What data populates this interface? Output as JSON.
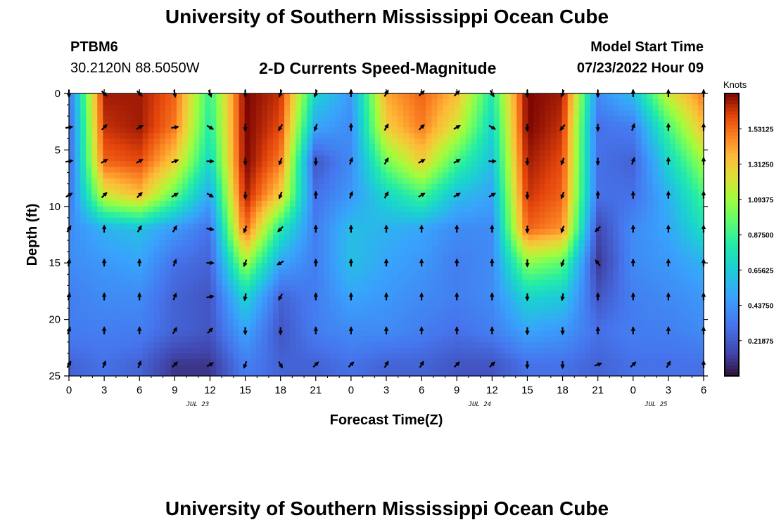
{
  "header": {
    "title": "University of Southern Mississippi Ocean Cube",
    "station": "PTBM6",
    "coords": "30.2120N  88.5050W",
    "subtitle": "2-D Currents Speed-Magnitude",
    "model_label": "Model Start Time",
    "model_time": "07/23/2022 Hour 09"
  },
  "footer": {
    "title": "University of Southern Mississippi Ocean Cube"
  },
  "chart_data": {
    "type": "heatmap",
    "xlabel": "Forecast Time(Z)",
    "ylabel": "Depth (ft)",
    "x_ticks": [
      "0",
      "3",
      "6",
      "9",
      "12",
      "15",
      "18",
      "21",
      "0",
      "3",
      "6",
      "9",
      "12",
      "15",
      "18",
      "21",
      "0",
      "3",
      "6"
    ],
    "date_labels": [
      {
        "label": "JUL 23",
        "at_tick": 3.65
      },
      {
        "label": "JUL 24",
        "at_tick": 11.65
      },
      {
        "label": "JUL 25",
        "at_tick": 16.65
      }
    ],
    "y_ticks": [
      "0",
      "5",
      "10",
      "15",
      "20",
      "25"
    ],
    "ylim": [
      0,
      25
    ],
    "colorbar": {
      "title": "Knots",
      "tick_labels": [
        "1.53125",
        "1.31250",
        "1.09375",
        "0.87500",
        "0.65625",
        "0.43750",
        "0.21875"
      ],
      "tick_values": [
        1.53125,
        1.3125,
        1.09375,
        0.875,
        0.65625,
        0.4375,
        0.21875
      ],
      "range": [
        0,
        1.75
      ]
    },
    "x_hours": [
      0,
      3,
      6,
      9,
      12,
      15,
      18,
      21,
      24,
      27,
      30,
      33,
      36,
      39,
      42,
      45,
      48,
      51,
      54
    ],
    "depths": [
      0,
      3,
      6,
      9,
      12,
      15,
      18,
      21,
      24
    ],
    "speed": [
      [
        0.3,
        1.7,
        1.7,
        1.55,
        0.85,
        1.75,
        1.65,
        0.7,
        0.45,
        1.4,
        1.55,
        1.35,
        0.8,
        1.75,
        1.7,
        0.4,
        0.6,
        1.2,
        1.5
      ],
      [
        0.25,
        1.65,
        1.7,
        1.5,
        0.8,
        1.75,
        1.6,
        0.5,
        0.4,
        1.3,
        1.5,
        1.2,
        0.7,
        1.75,
        1.65,
        0.3,
        0.35,
        0.9,
        1.35
      ],
      [
        0.25,
        1.55,
        1.6,
        1.3,
        0.7,
        1.75,
        1.5,
        0.2,
        0.4,
        1.0,
        1.3,
        0.9,
        0.6,
        1.7,
        1.6,
        0.3,
        0.25,
        0.7,
        1.1
      ],
      [
        0.3,
        1.2,
        1.35,
        0.95,
        0.5,
        1.7,
        1.3,
        0.3,
        0.45,
        0.7,
        0.9,
        0.6,
        0.5,
        1.65,
        1.55,
        0.3,
        0.3,
        0.55,
        0.9
      ],
      [
        0.4,
        0.55,
        0.6,
        0.45,
        0.3,
        1.55,
        0.8,
        0.35,
        0.6,
        0.55,
        0.5,
        0.4,
        0.4,
        1.55,
        1.45,
        0.15,
        0.4,
        0.5,
        0.75
      ],
      [
        0.4,
        0.45,
        0.5,
        0.3,
        0.25,
        1.1,
        0.5,
        0.35,
        0.6,
        0.5,
        0.45,
        0.35,
        0.4,
        1.05,
        0.95,
        0.1,
        0.4,
        0.45,
        0.55
      ],
      [
        0.35,
        0.4,
        0.4,
        0.25,
        0.2,
        0.7,
        0.25,
        0.35,
        0.5,
        0.45,
        0.4,
        0.35,
        0.4,
        0.7,
        0.65,
        0.2,
        0.35,
        0.4,
        0.45
      ],
      [
        0.35,
        0.35,
        0.35,
        0.25,
        0.2,
        0.5,
        0.2,
        0.35,
        0.4,
        0.4,
        0.35,
        0.3,
        0.35,
        0.5,
        0.45,
        0.3,
        0.35,
        0.35,
        0.4
      ],
      [
        0.25,
        0.3,
        0.25,
        0.1,
        0.1,
        0.35,
        0.25,
        0.25,
        0.3,
        0.25,
        0.25,
        0.2,
        0.2,
        0.3,
        0.3,
        0.25,
        0.3,
        0.3,
        0.3
      ]
    ],
    "direction_deg": [
      [
        180,
        135,
        135,
        170,
        160,
        180,
        200,
        200,
        0,
        30,
        45,
        45,
        150,
        180,
        200,
        180,
        0,
        0,
        0
      ],
      [
        80,
        45,
        60,
        80,
        120,
        180,
        210,
        200,
        0,
        30,
        45,
        60,
        120,
        180,
        220,
        180,
        20,
        0,
        0
      ],
      [
        80,
        60,
        60,
        70,
        90,
        180,
        200,
        180,
        20,
        30,
        60,
        60,
        90,
        180,
        200,
        180,
        20,
        0,
        0
      ],
      [
        60,
        45,
        45,
        60,
        120,
        180,
        200,
        0,
        20,
        30,
        60,
        60,
        60,
        180,
        200,
        0,
        0,
        0,
        0
      ],
      [
        30,
        0,
        30,
        30,
        100,
        200,
        225,
        0,
        0,
        0,
        0,
        0,
        0,
        180,
        200,
        225,
        0,
        0,
        0
      ],
      [
        10,
        0,
        0,
        20,
        90,
        200,
        240,
        0,
        0,
        0,
        0,
        0,
        0,
        180,
        200,
        320,
        0,
        0,
        0
      ],
      [
        10,
        0,
        0,
        20,
        80,
        190,
        210,
        0,
        0,
        0,
        0,
        0,
        0,
        180,
        190,
        0,
        0,
        0,
        0
      ],
      [
        20,
        0,
        0,
        30,
        45,
        180,
        180,
        0,
        0,
        0,
        0,
        0,
        0,
        180,
        180,
        0,
        0,
        0,
        0
      ],
      [
        30,
        20,
        20,
        45,
        60,
        200,
        150,
        45,
        45,
        30,
        30,
        45,
        45,
        180,
        180,
        70,
        45,
        30,
        0
      ]
    ]
  }
}
